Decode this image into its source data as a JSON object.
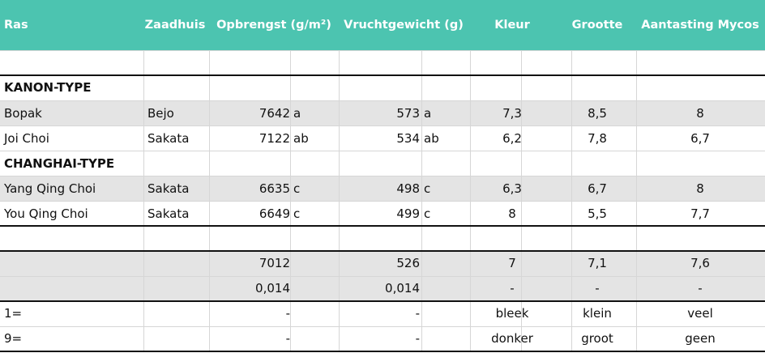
{
  "header": {
    "columns": [
      "Ras",
      "Zaadhuis",
      "Opbrengst (g/m²)",
      "Vruchtgewicht (g)",
      "Kleur",
      "Grootte",
      "Aantasting Mycos"
    ]
  },
  "table": {
    "rows": [
      [
        "KANON-TYPE",
        null,
        null,
        null,
        null,
        null,
        null,
        null,
        null
      ],
      [
        "Bopak",
        "Bejo",
        "7642",
        "a",
        "573",
        "a",
        "7,3",
        "8,5",
        "8"
      ],
      [
        "Joi Choi",
        "Sakata",
        "7122",
        "ab",
        "534",
        "ab",
        "6,2",
        "7,8",
        "6,7"
      ],
      [
        "CHANGHAI-TYPE",
        null,
        null,
        null,
        null,
        null,
        null,
        null,
        null
      ],
      [
        "Yang Qing Choi",
        "Sakata",
        "6635",
        "c",
        "498",
        "c",
        "6,3",
        "6,7",
        "8"
      ],
      [
        "You Qing Choi",
        "Sakata",
        "6649",
        "c",
        "499",
        "c",
        "8",
        "5,5",
        "7,7"
      ],
      [
        null,
        null,
        "7012",
        null,
        "526",
        null,
        "7",
        "7,1",
        "7,6"
      ],
      [
        null,
        null,
        "0,014",
        null,
        "0,014",
        null,
        "-",
        "-",
        "-"
      ],
      [
        "1=",
        null,
        "-",
        null,
        "-",
        null,
        "bleek",
        "klein",
        "veel"
      ],
      [
        "9=",
        null,
        "-",
        null,
        "-",
        null,
        "donker",
        "groot",
        "geen"
      ]
    ]
  }
}
